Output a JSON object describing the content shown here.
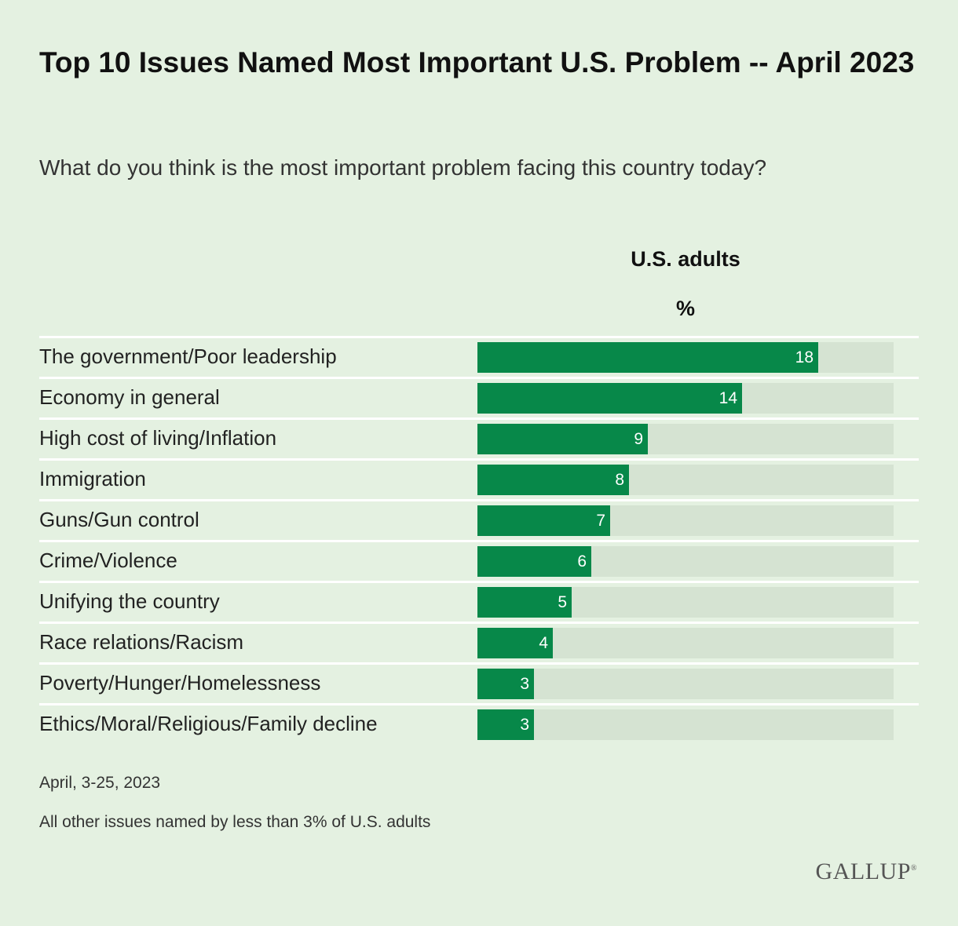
{
  "header": {
    "title": "Top 10 Issues Named Most Important U.S. Problem -- April 2023",
    "subtitle": "What do you think is the most important problem facing this country today?",
    "column_label": "U.S. adults",
    "unit_label": "%"
  },
  "footer": {
    "date_note": "April, 3-25, 2023",
    "other_note": "All other issues named by less than 3% of U.S. adults",
    "logo_text": "GALLUP"
  },
  "colors": {
    "background": "#e4f1e1",
    "bar": "#078849",
    "track": "#d5e3d2"
  },
  "chart_data": {
    "type": "bar",
    "orientation": "horizontal",
    "categories": [
      "The government/Poor leadership",
      "Economy in general",
      "High cost of living/Inflation",
      "Immigration",
      "Guns/Gun control",
      "Crime/Violence",
      "Unifying the country",
      "Race relations/Racism",
      "Poverty/Hunger/Homelessness",
      "Ethics/Moral/Religious/Family decline"
    ],
    "series": [
      {
        "name": "U.S. adults",
        "values": [
          18,
          14,
          9,
          8,
          7,
          6,
          5,
          4,
          3,
          3
        ]
      }
    ],
    "xlim": [
      0,
      22
    ]
  }
}
